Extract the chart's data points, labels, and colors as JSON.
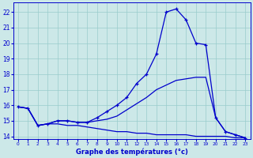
{
  "title": "Graphe des températures (°c)",
  "background_color": "#cce8e8",
  "line_color": "#0000cc",
  "grid_color": "#99cccc",
  "xlim": [
    -0.5,
    23.5
  ],
  "ylim": [
    13.8,
    22.6
  ],
  "xticks": [
    0,
    1,
    2,
    3,
    4,
    5,
    6,
    7,
    8,
    9,
    10,
    11,
    12,
    13,
    14,
    15,
    16,
    17,
    18,
    19,
    20,
    21,
    22,
    23
  ],
  "yticks": [
    14,
    15,
    16,
    17,
    18,
    19,
    20,
    21,
    22
  ],
  "series": [
    {
      "x": [
        0,
        1,
        2,
        3,
        4,
        5,
        6,
        7,
        8,
        9,
        10,
        11,
        12,
        13,
        14,
        15,
        16,
        17,
        18,
        19,
        20,
        21,
        22,
        23
      ],
      "y": [
        15.9,
        15.8,
        14.7,
        14.8,
        14.8,
        14.7,
        14.7,
        14.6,
        14.5,
        14.4,
        14.3,
        14.3,
        14.2,
        14.2,
        14.1,
        14.1,
        14.1,
        14.1,
        14.0,
        14.0,
        14.0,
        14.0,
        13.9,
        13.9
      ],
      "marker": false,
      "lw": 0.9
    },
    {
      "x": [
        0,
        1,
        2,
        3,
        4,
        5,
        6,
        7,
        8,
        9,
        10,
        11,
        12,
        13,
        14,
        15,
        16,
        17,
        18,
        19,
        20,
        21,
        22,
        23
      ],
      "y": [
        15.9,
        15.8,
        14.7,
        14.8,
        15.0,
        15.0,
        14.9,
        14.9,
        15.0,
        15.1,
        15.3,
        15.7,
        16.1,
        16.5,
        17.0,
        17.3,
        17.6,
        17.7,
        17.8,
        17.8,
        15.2,
        14.3,
        14.1,
        13.9
      ],
      "marker": false,
      "lw": 0.9
    },
    {
      "x": [
        0,
        1,
        2,
        3,
        4,
        5,
        6,
        7,
        8,
        9,
        10,
        11,
        12,
        13,
        14,
        15,
        16,
        17,
        18,
        19,
        20,
        21,
        22,
        23
      ],
      "y": [
        15.9,
        15.8,
        14.7,
        14.8,
        15.0,
        15.0,
        14.9,
        14.9,
        15.2,
        15.6,
        16.0,
        16.5,
        17.4,
        18.0,
        19.3,
        22.0,
        22.2,
        21.5,
        20.0,
        19.9,
        15.2,
        14.3,
        14.1,
        13.9
      ],
      "marker": true,
      "lw": 0.9
    }
  ]
}
